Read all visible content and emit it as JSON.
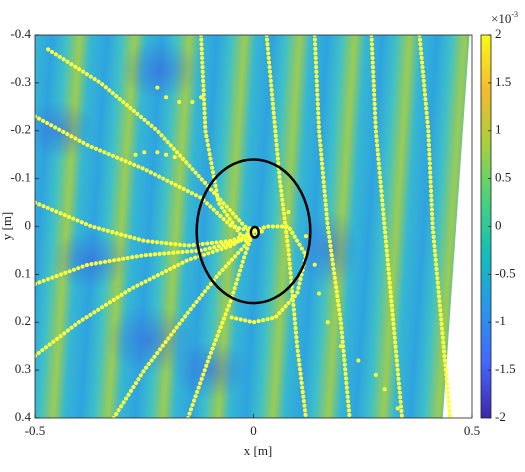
{
  "chart_data": {
    "type": "field",
    "xlabel": "x [m]",
    "ylabel": "y [m]",
    "xlim": [
      -0.5,
      0.5
    ],
    "ylim": [
      -0.4,
      0.4
    ],
    "y_reversed": true,
    "xticks": [
      -0.5,
      0,
      0.5
    ],
    "yticks": [
      -0.4,
      -0.3,
      -0.2,
      -0.1,
      0,
      0.1,
      0.2,
      0.3,
      0.4
    ],
    "colorbar": {
      "lim": [
        -2,
        2
      ],
      "ticks": [
        -2,
        -1.5,
        -1,
        -0.5,
        0,
        0.5,
        1,
        1.5,
        2
      ],
      "scale_label": "×10",
      "scale_exponent": "-3",
      "colormap": [
        "#3e26a8",
        "#4367fd",
        "#2797eb",
        "#13beb8",
        "#49d27b",
        "#a8d03c",
        "#f5ba2d",
        "#f9fb15"
      ]
    },
    "series": [
      {
        "style": "line",
        "color": "#ffff40",
        "x": [
          0.38,
          0.4,
          0.41,
          0.43,
          0.45
        ],
        "y": [
          -0.4,
          -0.2,
          0,
          0.2,
          0.4
        ]
      },
      {
        "style": "line",
        "color": "#ffff40",
        "x": [
          0.27,
          0.28,
          0.3,
          0.32,
          0.34
        ],
        "y": [
          -0.4,
          -0.2,
          0,
          0.2,
          0.4
        ]
      },
      {
        "style": "line",
        "color": "#ffff40",
        "x": [
          0.14,
          0.15,
          0.17,
          0.2,
          0.22
        ],
        "y": [
          -0.4,
          -0.2,
          0,
          0.2,
          0.4
        ]
      },
      {
        "style": "line",
        "color": "#ffff40",
        "x": [
          0.03,
          0.05,
          0.06,
          0.08,
          0.1,
          0.12
        ],
        "y": [
          -0.4,
          -0.2,
          -0.1,
          0.05,
          0.25,
          0.4
        ]
      },
      {
        "style": "line",
        "color": "#ffff40",
        "x": [
          -0.12,
          -0.11,
          -0.08,
          -0.02,
          0.02
        ],
        "y": [
          -0.4,
          -0.2,
          -0.05,
          0.03,
          0.01
        ]
      },
      {
        "style": "line",
        "color": "#ffff40",
        "x": [
          -0.47,
          -0.35,
          -0.22,
          -0.1,
          -0.02,
          0.01
        ],
        "y": [
          -0.37,
          -0.3,
          -0.2,
          -0.08,
          0.0,
          0.01
        ]
      },
      {
        "style": "line",
        "color": "#ffff40",
        "x": [
          -0.5,
          -0.38,
          -0.25,
          -0.12,
          -0.05,
          0.0
        ],
        "y": [
          -0.23,
          -0.17,
          -0.12,
          -0.06,
          0.0,
          0.01
        ]
      },
      {
        "style": "line",
        "color": "#ffff40",
        "x": [
          -0.5,
          -0.37,
          -0.25,
          -0.15,
          -0.05,
          0.0
        ],
        "y": [
          -0.05,
          0.0,
          0.03,
          0.04,
          0.03,
          0.01
        ]
      },
      {
        "style": "line",
        "color": "#ffff40",
        "x": [
          -0.5,
          -0.38,
          -0.25,
          -0.12,
          -0.03,
          0.0
        ],
        "y": [
          0.12,
          0.08,
          0.06,
          0.05,
          0.03,
          0.01
        ]
      },
      {
        "style": "line",
        "color": "#ffff40",
        "x": [
          -0.5,
          -0.4,
          -0.28,
          -0.15,
          -0.05,
          0.0
        ],
        "y": [
          0.27,
          0.2,
          0.13,
          0.07,
          0.04,
          0.01
        ]
      },
      {
        "style": "line",
        "color": "#ffff40",
        "x": [
          -0.32,
          -0.25,
          -0.15,
          -0.08,
          -0.02,
          0.0
        ],
        "y": [
          0.4,
          0.3,
          0.18,
          0.1,
          0.04,
          0.01
        ]
      },
      {
        "style": "line",
        "color": "#ffff40",
        "x": [
          -0.15,
          -0.1,
          -0.05,
          -0.02,
          0.0
        ],
        "y": [
          0.4,
          0.27,
          0.15,
          0.06,
          0.01
        ]
      },
      {
        "style": "line",
        "color": "#ffff40",
        "x": [
          -0.05,
          0.0,
          0.05,
          0.1,
          0.12,
          0.08,
          0.03,
          0.0
        ],
        "y": [
          0.19,
          0.2,
          0.19,
          0.14,
          0.06,
          0.0,
          0.0,
          0.01
        ]
      },
      {
        "style": "dots",
        "color": "#ffff40",
        "x": [
          0.08,
          0.12,
          0.14,
          0.15,
          0.17,
          0.2,
          0.24,
          0.28,
          0.3,
          0.33
        ],
        "y": [
          -0.03,
          0.02,
          0.08,
          0.14,
          0.2,
          0.25,
          0.28,
          0.31,
          0.34,
          0.38
        ]
      },
      {
        "style": "dots",
        "color": "#ffff40",
        "x": [
          -0.22,
          -0.2,
          -0.17,
          -0.14,
          -0.12
        ],
        "y": [
          -0.29,
          -0.27,
          -0.26,
          -0.26,
          -0.27
        ]
      },
      {
        "style": "dots",
        "color": "#ffff40",
        "x": [
          -0.27,
          -0.25,
          -0.22,
          -0.2,
          -0.18
        ],
        "y": [
          -0.15,
          -0.155,
          -0.155,
          -0.15,
          -0.145
        ]
      }
    ],
    "ellipses": [
      {
        "color": "#000000",
        "center": [
          0,
          0.01
        ],
        "radius": [
          0.13,
          0.15
        ]
      },
      {
        "color": "#000000",
        "center": [
          0.003,
          0.012
        ],
        "radius": [
          0.009,
          0.011
        ]
      }
    ]
  }
}
